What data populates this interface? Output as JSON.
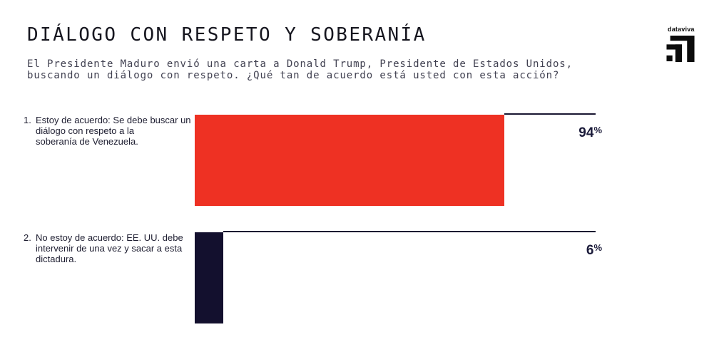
{
  "header": {
    "title": "DIÁLOGO CON RESPETO Y SOBERANÍA",
    "subtitle_line1": "El Presidente Maduro envió una carta a Donald Trump, Presidente de Estados Unidos,",
    "subtitle_line2": "buscando un diálogo con respeto. ¿Qué tan de acuerdo está usted con esta acción?"
  },
  "logo": {
    "text": "dataviva",
    "color": "#0c0c0c"
  },
  "chart_data": {
    "type": "bar",
    "orientation": "horizontal",
    "title": "DIÁLOGO CON RESPETO Y SOBERANÍA",
    "subtitle": "El Presidente Maduro envió una carta a Donald Trump, Presidente de Estados Unidos, buscando un diálogo con respeto. ¿Qué tan de acuerdo está usted con esta acción?",
    "categories": [
      "1. Estoy de acuerdo: Se debe buscar un diálogo con respeto a la soberanía de Venezuela.",
      "2. No estoy de acuerdo: EE. UU. debe intervenir de una vez y sacar a esta dictadura."
    ],
    "values": [
      94,
      6
    ],
    "value_labels": [
      "94%",
      "6%"
    ],
    "unit": "%",
    "bar_colors": [
      "#ee3123",
      "#13102e"
    ],
    "axis_line_color": "#191631",
    "xlim": [
      0,
      100
    ],
    "grid": false,
    "legend": false
  },
  "rows": [
    {
      "number": "1.",
      "lines": [
        "Estoy de acuerdo: Se debe buscar un",
        "diálogo con respeto a la",
        "soberanía de Venezuela."
      ],
      "value": 94,
      "value_label": "94",
      "unit": "%",
      "color": "#ee3123"
    },
    {
      "number": "2.",
      "lines": [
        "No estoy de acuerdo: EE. UU. debe",
        "intervenir de una vez y sacar a esta",
        "dictadura."
      ],
      "value": 6,
      "value_label": "6",
      "unit": "%",
      "color": "#13102e"
    }
  ]
}
